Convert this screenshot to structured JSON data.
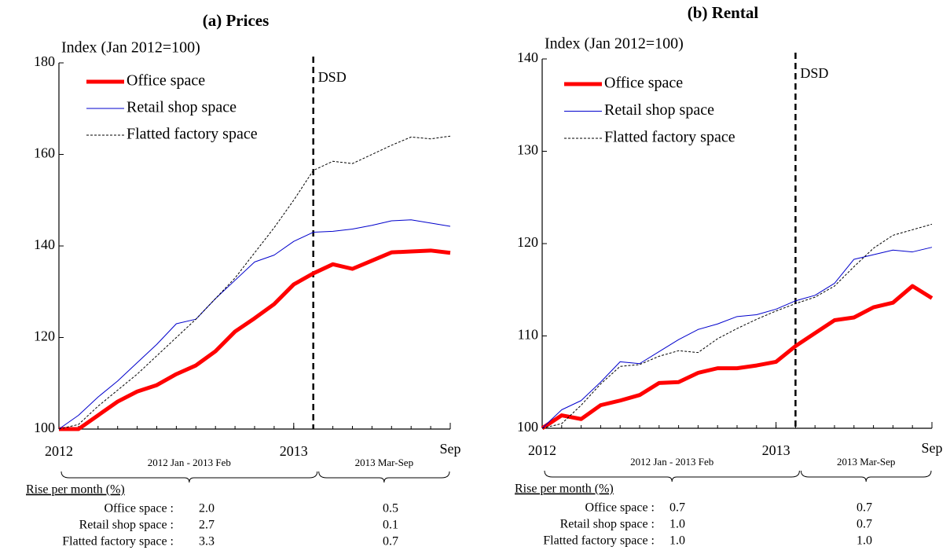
{
  "chart_data": [
    {
      "type": "line",
      "title": "(a) Prices",
      "ylabel": "Index (Jan 2012=100)",
      "x": [
        0,
        1,
        2,
        3,
        4,
        5,
        6,
        7,
        8,
        9,
        10,
        11,
        12,
        13,
        14,
        15,
        16,
        17,
        18,
        19,
        20
      ],
      "xlim": [
        0,
        20
      ],
      "xticks": [
        {
          "value": 0,
          "label": "2012"
        },
        {
          "value": 12,
          "label": "2013"
        },
        {
          "value": 20,
          "label": "Sep"
        }
      ],
      "ylim": [
        100,
        180
      ],
      "yticks": [
        100,
        120,
        140,
        160,
        180
      ],
      "series": [
        {
          "name": "Office space",
          "color": "#ff0000",
          "width": 5,
          "style": "solid",
          "values": [
            100,
            100,
            103,
            106,
            108.2,
            109.6,
            112,
            113.9,
            117,
            121.3,
            124.2,
            127.3,
            131.6,
            134,
            136,
            135,
            136.8,
            138.6,
            138.8,
            139,
            138.5
          ]
        },
        {
          "name": "Retail shop space",
          "color": "#0000cc",
          "width": 1,
          "style": "solid",
          "values": [
            100,
            103,
            107,
            110.5,
            114.5,
            118.5,
            123,
            124,
            128.5,
            132.5,
            136.5,
            138,
            141,
            143,
            143.2,
            143.7,
            144.5,
            145.5,
            145.7,
            145,
            144.3
          ]
        },
        {
          "name": "Flatted factory space",
          "color": "#000000",
          "width": 1,
          "style": "dashed",
          "values": [
            100,
            101,
            105,
            108.5,
            112,
            116,
            120,
            124,
            128.5,
            133,
            138.5,
            144,
            150,
            156.5,
            158.5,
            158,
            160,
            162,
            163.8,
            163.4,
            164
          ]
        }
      ],
      "annotation": {
        "text": "DSD",
        "x": 13
      },
      "periods": [
        "2012 Jan - 2013 Feb",
        "2013 Mar-Sep"
      ],
      "rise_table": {
        "title": "Rise per month (%)",
        "rows": [
          {
            "label": "Office space :",
            "values": [
              "2.0",
              "0.5"
            ]
          },
          {
            "label": "Retail shop space :",
            "values": [
              "2.7",
              "0.1"
            ]
          },
          {
            "label": "Flatted factory space :",
            "values": [
              "3.3",
              "0.7"
            ]
          }
        ]
      }
    },
    {
      "type": "line",
      "title": "(b) Rental",
      "ylabel": "Index (Jan 2012=100)",
      "x": [
        0,
        1,
        2,
        3,
        4,
        5,
        6,
        7,
        8,
        9,
        10,
        11,
        12,
        13,
        14,
        15,
        16,
        17,
        18,
        19,
        20
      ],
      "xlim": [
        0,
        20
      ],
      "xticks": [
        {
          "value": 0,
          "label": "2012"
        },
        {
          "value": 12,
          "label": "2013"
        },
        {
          "value": 20,
          "label": "Sep"
        }
      ],
      "ylim": [
        100,
        140
      ],
      "yticks": [
        100,
        110,
        120,
        130,
        140
      ],
      "series": [
        {
          "name": "Office space",
          "color": "#ff0000",
          "width": 5,
          "style": "solid",
          "values": [
            100,
            101.4,
            101,
            102.5,
            103,
            103.6,
            104.9,
            105,
            106,
            106.5,
            106.5,
            106.8,
            107.2,
            108.9,
            110.3,
            111.7,
            112,
            113.1,
            113.6,
            115.4,
            114.1
          ]
        },
        {
          "name": "Retail shop space",
          "color": "#0000cc",
          "width": 1,
          "style": "solid",
          "values": [
            100,
            102,
            103,
            105,
            107.2,
            107,
            108.3,
            109.6,
            110.7,
            111.3,
            112.1,
            112.3,
            112.9,
            113.8,
            114.4,
            115.7,
            118.3,
            118.8,
            119.3,
            119.1,
            119.6
          ]
        },
        {
          "name": "Flatted factory space",
          "color": "#000000",
          "width": 1,
          "style": "dashed",
          "values": [
            100,
            100.5,
            102.5,
            104.8,
            106.7,
            106.9,
            107.8,
            108.4,
            108.2,
            109.7,
            110.8,
            111.8,
            112.7,
            113.5,
            114.2,
            115.4,
            117.5,
            119.5,
            120.9,
            121.5,
            122.1
          ]
        }
      ],
      "annotation": {
        "text": "DSD",
        "x": 13
      },
      "periods": [
        "2012 Jan - 2013 Feb",
        "2013 Mar-Sep"
      ],
      "rise_table": {
        "title": "Rise per month (%)",
        "rows": [
          {
            "label": "Office space :",
            "values": [
              "0.7",
              "0.7"
            ]
          },
          {
            "label": "Retail shop space :",
            "values": [
              "1.0",
              "0.7"
            ]
          },
          {
            "label": "Flatted factory space :",
            "values": [
              "1.0",
              "1.0"
            ]
          }
        ]
      }
    }
  ]
}
